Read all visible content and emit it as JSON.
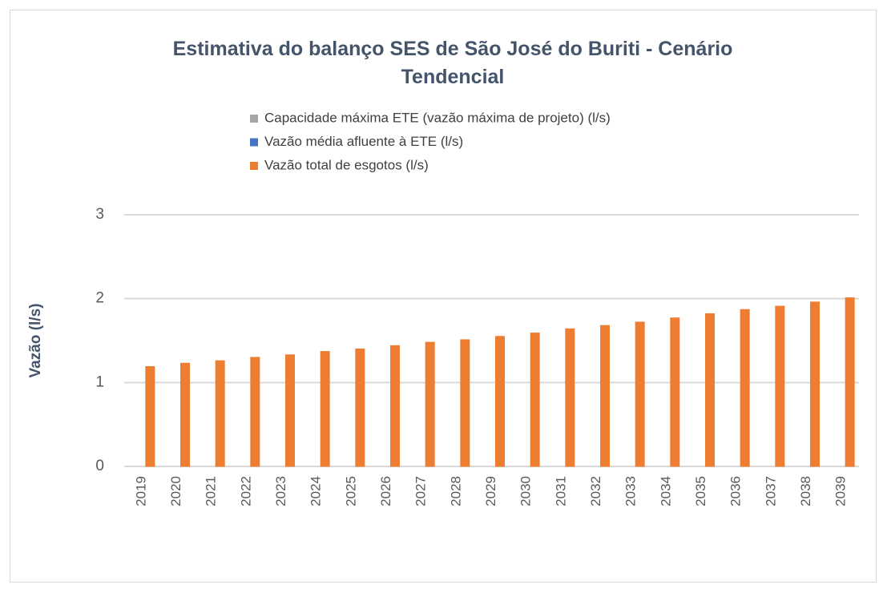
{
  "chart_data": {
    "type": "bar",
    "title": "Estimativa do balanço SES de São José do Buriti - Cenário Tendencial",
    "y_label": "Vazão (l/s)",
    "categories": [
      "2019",
      "2020",
      "2021",
      "2022",
      "2023",
      "2024",
      "2025",
      "2026",
      "2027",
      "2028",
      "2029",
      "2030",
      "2031",
      "2032",
      "2033",
      "2034",
      "2035",
      "2036",
      "2037",
      "2038",
      "2039"
    ],
    "series": [
      {
        "name": "Capacidade máxima ETE (vazão máxima de projeto) (l/s)",
        "color": "#a5a5a5",
        "values": [
          0,
          0,
          0,
          0,
          0,
          0,
          0,
          0,
          0,
          0,
          0,
          0,
          0,
          0,
          0,
          0,
          0,
          0,
          0,
          0,
          0
        ]
      },
      {
        "name": "Vazão  média afluente à ETE (l/s)",
        "color": "#4472c4",
        "values": [
          0,
          0,
          0,
          0,
          0,
          0,
          0,
          0,
          0,
          0,
          0,
          0,
          0,
          0,
          0,
          0,
          0,
          0,
          0,
          0,
          0
        ]
      },
      {
        "name": "Vazão total de esgotos (l/s)",
        "color": "#ed7d31",
        "values": [
          1.19,
          1.23,
          1.26,
          1.3,
          1.33,
          1.37,
          1.4,
          1.44,
          1.48,
          1.51,
          1.55,
          1.59,
          1.64,
          1.68,
          1.72,
          1.77,
          1.82,
          1.87,
          1.91,
          1.96,
          2.01
        ]
      }
    ],
    "ylim": [
      0,
      3
    ],
    "yticks": [
      0,
      1,
      2,
      3
    ],
    "grid": true
  }
}
